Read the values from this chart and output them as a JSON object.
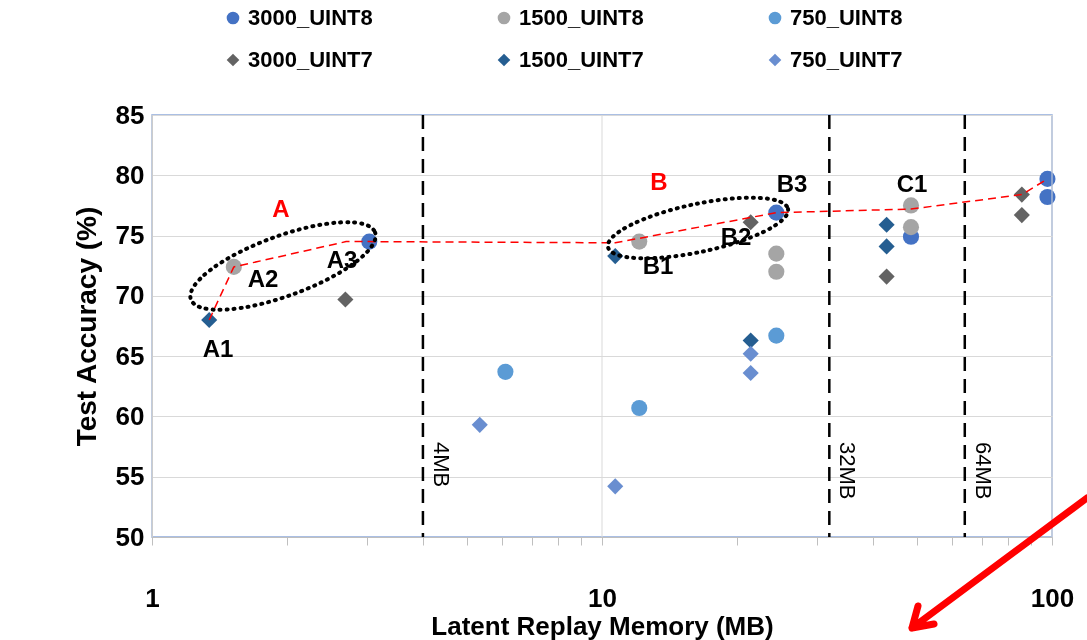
{
  "chart_data": {
    "type": "scatter",
    "xlabel": "Latent Replay Memory (MB)",
    "ylabel": "Test Accuracy (%)",
    "log": "x",
    "grid": true,
    "legend": "top",
    "xlim": [
      1,
      100
    ],
    "ylim": [
      50,
      85
    ],
    "xticks": [
      1,
      {
        "value": 2,
        "label": null
      },
      {
        "value": 3,
        "label": null
      },
      {
        "value": 4,
        "label": null
      },
      {
        "value": 5,
        "label": null
      },
      {
        "value": 6,
        "label": null
      },
      {
        "value": 7,
        "label": null
      },
      {
        "value": 8,
        "label": null
      },
      {
        "value": 9,
        "label": null
      },
      10,
      {
        "value": 20,
        "label": null
      },
      {
        "value": 30,
        "label": null
      },
      {
        "value": 40,
        "label": null
      },
      {
        "value": 50,
        "label": null
      },
      {
        "value": 60,
        "label": null
      },
      {
        "value": 70,
        "label": null
      },
      {
        "value": 80,
        "label": null
      },
      {
        "value": 90,
        "label": null
      },
      100
    ],
    "yticks": [
      50,
      55,
      60,
      65,
      70,
      75,
      80,
      85
    ],
    "series": [
      {
        "name": "3000_UINT8",
        "type": "scatter",
        "marker": "circle",
        "color": "#4472c4",
        "x": [
          3.04,
          24.4,
          48.6,
          97.7,
          97.7
        ],
        "values": [
          74.5,
          76.9,
          74.9,
          79.7,
          78.2
        ]
      },
      {
        "name": "1500_UINT8",
        "type": "scatter",
        "marker": "circle",
        "color": "#a5a5a5",
        "x": [
          1.52,
          12.1,
          24.4,
          24.4,
          48.6,
          48.6
        ],
        "values": [
          72.4,
          74.5,
          73.5,
          72.0,
          77.5,
          75.7
        ]
      },
      {
        "name": "750_UINT8",
        "type": "scatter",
        "marker": "circle",
        "color": "#5b9bd5",
        "x": [
          6.1,
          12.1,
          24.4
        ],
        "values": [
          63.7,
          60.7,
          66.7
        ]
      },
      {
        "name": "3000_UINT7",
        "type": "scatter",
        "marker": "diamond",
        "color": "#636363",
        "x": [
          2.69,
          21.4,
          42.9,
          85.7,
          85.7
        ],
        "values": [
          69.7,
          76.1,
          71.6,
          78.4,
          76.7
        ]
      },
      {
        "name": "1500_UINT7",
        "type": "scatter",
        "marker": "diamond",
        "color": "#255e91",
        "x": [
          1.34,
          10.7,
          21.4,
          42.9,
          42.9
        ],
        "values": [
          68.0,
          73.3,
          66.3,
          75.9,
          74.1
        ]
      },
      {
        "name": "750_UINT7",
        "type": "scatter",
        "marker": "diamond",
        "color": "#698ed0",
        "x": [
          5.35,
          10.7,
          21.4,
          21.4
        ],
        "values": [
          59.3,
          54.2,
          65.2,
          63.6
        ]
      },
      {
        "type": "line",
        "marker": "none",
        "line_style": "dashed",
        "color": "#ff0000",
        "x": [
          1.34,
          1.52,
          2.7,
          3.04,
          10.7,
          24.4,
          48.6,
          85.7,
          97.7
        ],
        "values": [
          68.0,
          72.4,
          74.5,
          74.5,
          74.4,
          76.9,
          77.2,
          78.4,
          79.7
        ]
      }
    ],
    "ref_lines": [
      {
        "axis": "x",
        "value": 4,
        "label": "4MB",
        "color": "#000000",
        "line_style": "dashed"
      },
      {
        "axis": "x",
        "value": 32,
        "label": "32MB",
        "color": "#000000",
        "line_style": "dashed"
      },
      {
        "axis": "x",
        "value": 64,
        "label": "64MB",
        "color": "#000000",
        "line_style": "dashed"
      }
    ],
    "annotations": [
      "A",
      "B",
      "A1",
      "A2",
      "A3",
      "B1",
      "B2",
      "B3",
      "C1"
    ]
  }
}
